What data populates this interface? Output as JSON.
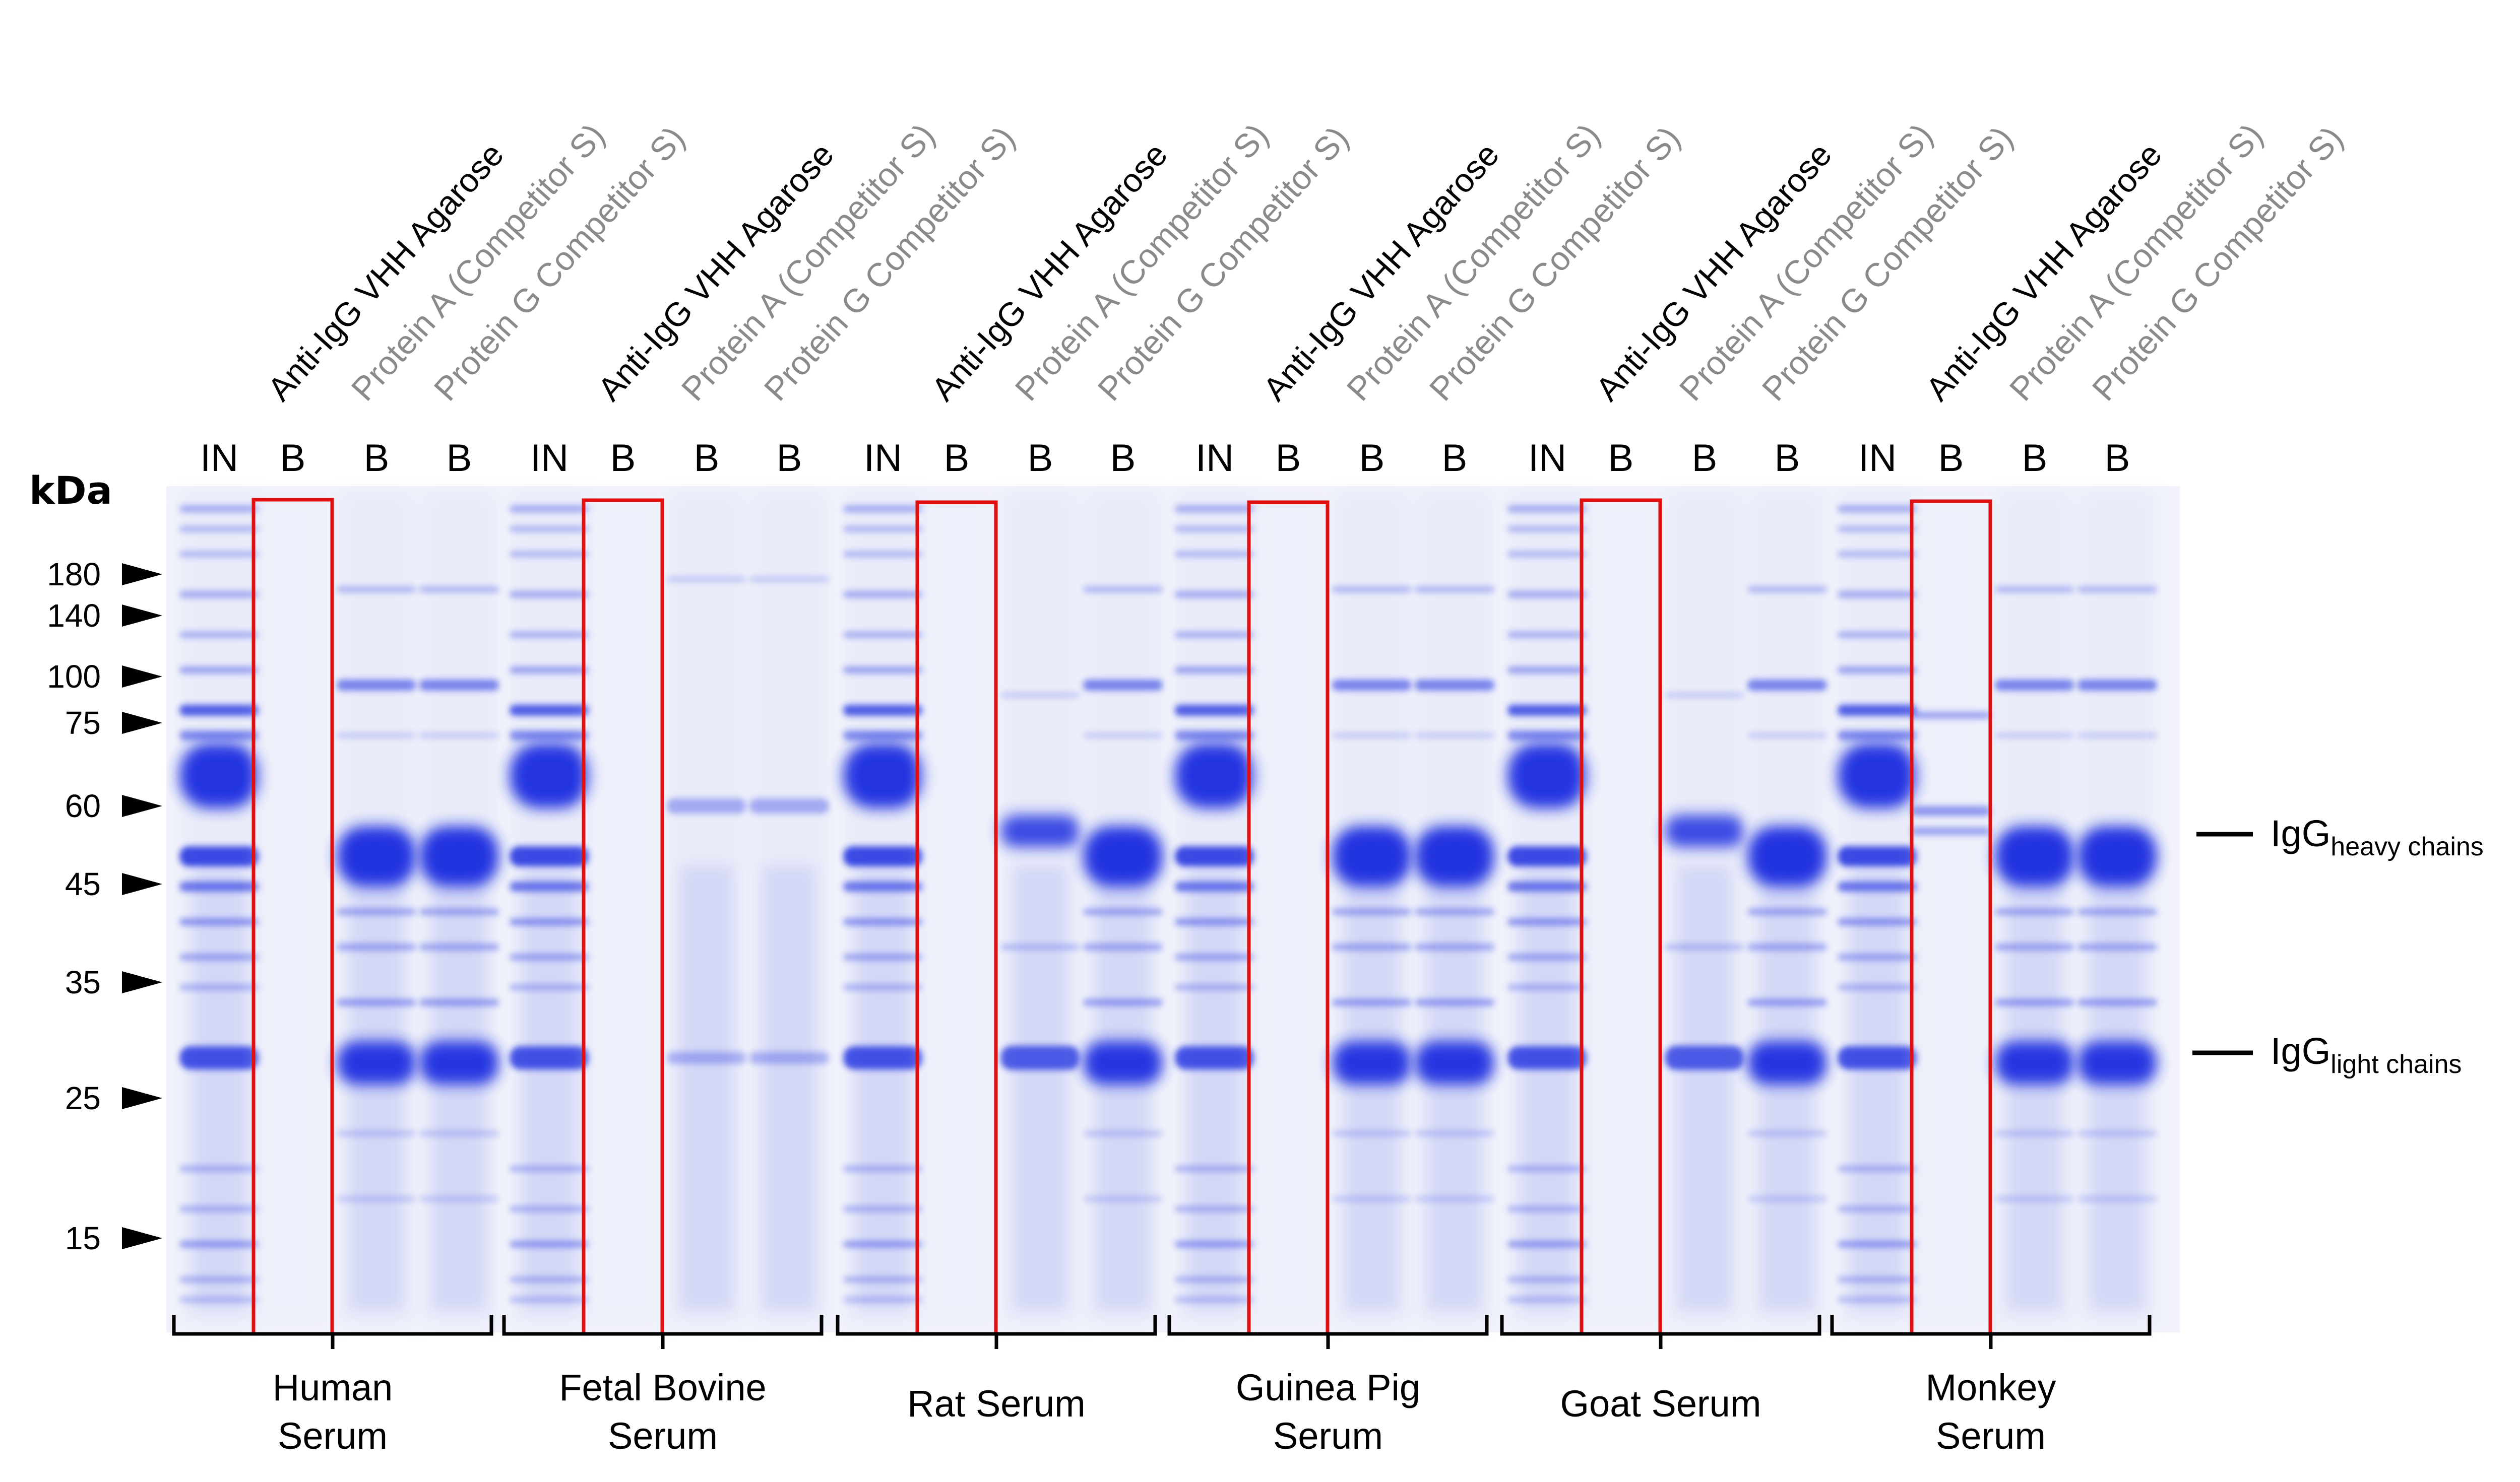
{
  "lane_names": [
    "Anti-IgG VHH Agarose",
    "Protein A (Competitor S)",
    "Protein G Competitor S)"
  ],
  "lane_types": [
    "IN",
    "B",
    "B",
    "B"
  ],
  "kda_title": "kDa",
  "mw_markers": [
    "180",
    "140",
    "100",
    "75",
    "60",
    "45",
    "35",
    "25",
    "15"
  ],
  "groups": [
    {
      "line1": "Human",
      "line2": "Serum"
    },
    {
      "line1": "Fetal Bovine",
      "line2": "Serum"
    },
    {
      "line1": "Rat Serum",
      "line2": ""
    },
    {
      "line1": "Guinea Pig",
      "line2": "Serum"
    },
    {
      "line1": "Goat Serum",
      "line2": ""
    },
    {
      "line1": "Monkey",
      "line2": "Serum"
    }
  ],
  "igg_heavy": {
    "main": "IgG",
    "sub": "heavy chains"
  },
  "igg_light": {
    "main": "IgG",
    "sub": "light chains"
  },
  "colors": {
    "gel_bg": "#f1f2fb",
    "band": "#1a2ee0",
    "highlight_box": "#e01010",
    "dark_lane_label": "#000000",
    "grey_lane_label": "#8a8a8a"
  }
}
